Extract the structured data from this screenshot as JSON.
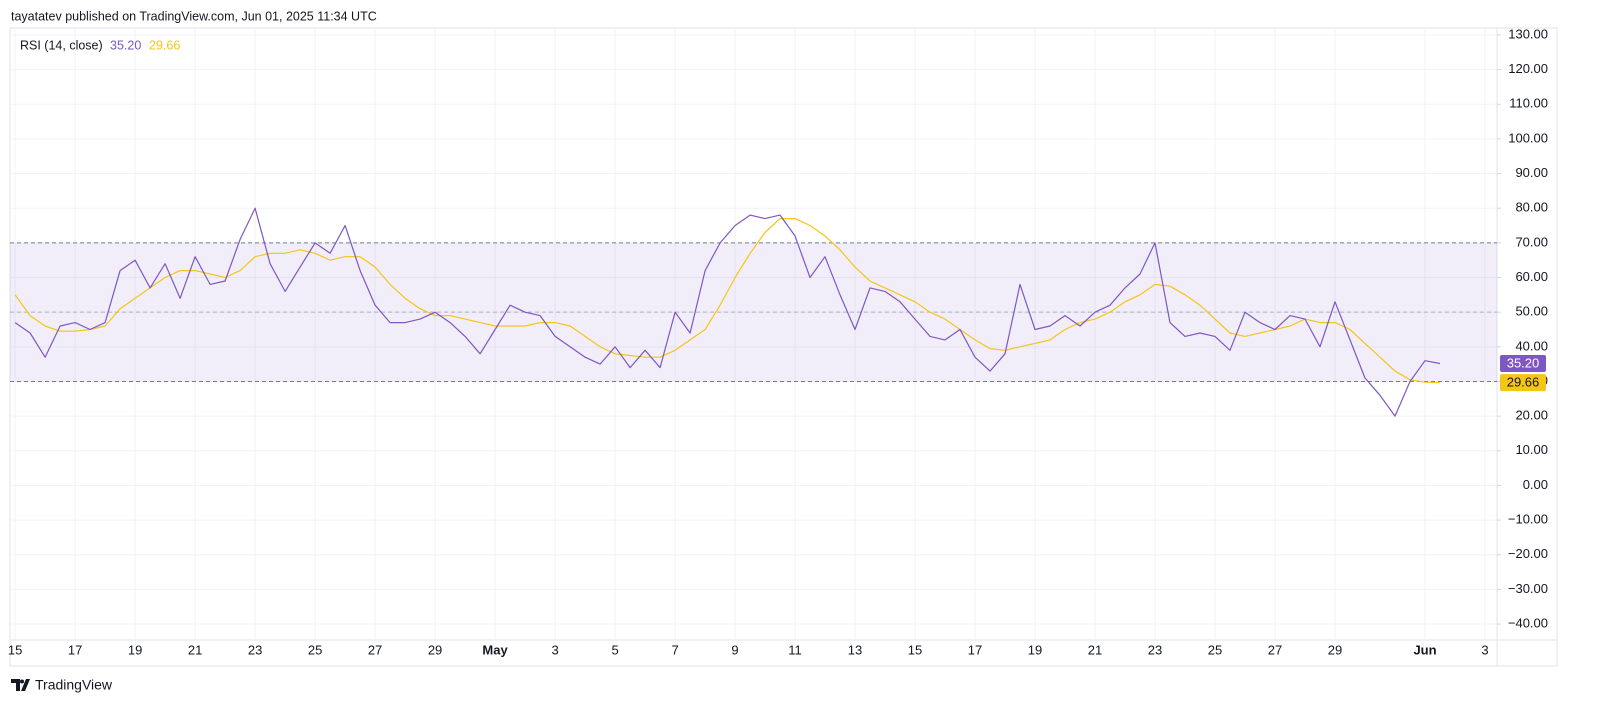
{
  "header": {
    "publisher_line": "tayatatev published on TradingView.com, Jun 01, 2025 11:34 UTC"
  },
  "chart_data": {
    "type": "line",
    "x": [
      15,
      15.5,
      16,
      16.5,
      17,
      17.5,
      18,
      18.5,
      19,
      19.5,
      20,
      20.5,
      21,
      21.5,
      22,
      22.5,
      23,
      23.5,
      24,
      24.5,
      25,
      25.5,
      26,
      26.5,
      27,
      27.5,
      28,
      28.5,
      29,
      29.5,
      30,
      30.5,
      31,
      31.5,
      32,
      32.5,
      33,
      33.5,
      34,
      34.5,
      35,
      35.5,
      36,
      36.5,
      37,
      37.5,
      38,
      38.5,
      39,
      39.5,
      40,
      40.5,
      41,
      41.5,
      42,
      42.5,
      43,
      43.5,
      44,
      44.5,
      45,
      45.5,
      46,
      46.5,
      47,
      47.5,
      48,
      48.5,
      49,
      49.5,
      50,
      50.5,
      51,
      51.5,
      52,
      52.5,
      53,
      53.5,
      54,
      54.5,
      55,
      55.5,
      56,
      56.5,
      57,
      57.5,
      58,
      58.5,
      59,
      59.5,
      60,
      60.5,
      61,
      61.5,
      62,
      62.5
    ],
    "xlim": [
      14.83,
      64.4
    ],
    "xticks": [
      {
        "value": 15,
        "label": "15"
      },
      {
        "value": 17,
        "label": "17"
      },
      {
        "value": 19,
        "label": "19"
      },
      {
        "value": 21,
        "label": "21"
      },
      {
        "value": 23,
        "label": "23"
      },
      {
        "value": 25,
        "label": "25"
      },
      {
        "value": 27,
        "label": "27"
      },
      {
        "value": 29,
        "label": "29"
      },
      {
        "value": 31,
        "label": "May"
      },
      {
        "value": 33,
        "label": "3"
      },
      {
        "value": 35,
        "label": "5"
      },
      {
        "value": 37,
        "label": "7"
      },
      {
        "value": 39,
        "label": "9"
      },
      {
        "value": 41,
        "label": "11"
      },
      {
        "value": 43,
        "label": "13"
      },
      {
        "value": 45,
        "label": "15"
      },
      {
        "value": 47,
        "label": "17"
      },
      {
        "value": 49,
        "label": "19"
      },
      {
        "value": 51,
        "label": "21"
      },
      {
        "value": 53,
        "label": "23"
      },
      {
        "value": 55,
        "label": "25"
      },
      {
        "value": 57,
        "label": "27"
      },
      {
        "value": 59,
        "label": "29"
      },
      {
        "value": 62,
        "label": "Jun"
      },
      {
        "value": 64,
        "label": "3"
      }
    ],
    "ylim": [
      -44.6,
      132
    ],
    "yticks": [
      {
        "value": 130,
        "label": "130.00"
      },
      {
        "value": 120,
        "label": "120.00"
      },
      {
        "value": 110,
        "label": "110.00"
      },
      {
        "value": 100,
        "label": "100.00"
      },
      {
        "value": 90,
        "label": "90.00"
      },
      {
        "value": 80,
        "label": "80.00"
      },
      {
        "value": 70,
        "label": "70.00"
      },
      {
        "value": 60,
        "label": "60.00"
      },
      {
        "value": 50,
        "label": "50.00"
      },
      {
        "value": 40,
        "label": "40.00"
      },
      {
        "value": 30,
        "label": "30.00"
      },
      {
        "value": 20,
        "label": "20.00"
      },
      {
        "value": 10,
        "label": "10.00"
      },
      {
        "value": 0,
        "label": "0.00"
      },
      {
        "value": -10,
        "label": "−10.00"
      },
      {
        "value": -20,
        "label": "−20.00"
      },
      {
        "value": -30,
        "label": "−30.00"
      },
      {
        "value": -40,
        "label": "−40.00"
      }
    ],
    "bands": {
      "upper": 70,
      "middle": 50,
      "lower": 30
    },
    "grid": true,
    "series": [
      {
        "name": "RSI (14, close)",
        "color": "#7e57c2",
        "last_label": "35.20",
        "values": [
          47,
          44,
          37,
          46,
          47,
          45,
          47,
          62,
          65,
          57,
          64,
          54,
          66,
          58,
          59,
          71,
          80,
          64,
          56,
          63,
          70,
          67,
          75,
          62,
          52,
          47,
          47,
          48,
          50,
          47,
          43,
          38,
          45,
          52,
          50,
          49,
          43,
          40,
          37,
          35,
          40,
          34,
          39,
          34,
          50,
          44,
          62,
          70,
          75,
          78,
          77,
          78,
          72,
          60,
          66,
          55,
          45,
          57,
          56,
          53,
          48,
          43,
          42,
          45,
          37,
          33,
          38,
          58,
          45,
          46,
          49,
          46,
          50,
          52,
          57,
          61,
          70,
          47,
          43,
          44,
          43,
          39,
          50,
          47,
          45,
          49,
          48,
          40,
          53,
          42,
          31,
          26,
          20,
          30,
          36,
          35.2
        ]
      },
      {
        "color": "#f5c518",
        "last_label": "29.66",
        "values": [
          55,
          49,
          46,
          44.5,
          44.5,
          45,
          46,
          51,
          54,
          57,
          60,
          62,
          62,
          61,
          60,
          62,
          66,
          67,
          67,
          68,
          67,
          65,
          66,
          66,
          63,
          58,
          54,
          51,
          49,
          49,
          48,
          47,
          46,
          46,
          46,
          47,
          47,
          46,
          43,
          40,
          38,
          37.5,
          37,
          37,
          39,
          42,
          45,
          52,
          60,
          67,
          73,
          77,
          77,
          75,
          72,
          68,
          63,
          59,
          57,
          55,
          53,
          50,
          48,
          45,
          42,
          39.5,
          39,
          40,
          41,
          42,
          45,
          47,
          48,
          50,
          53,
          55,
          58,
          57.5,
          55,
          52,
          48,
          44,
          43,
          44,
          45,
          46,
          48,
          47,
          47,
          45,
          41,
          37,
          33,
          30.5,
          29.8,
          29.66
        ]
      }
    ]
  },
  "footer": {
    "brand": "TradingView"
  }
}
